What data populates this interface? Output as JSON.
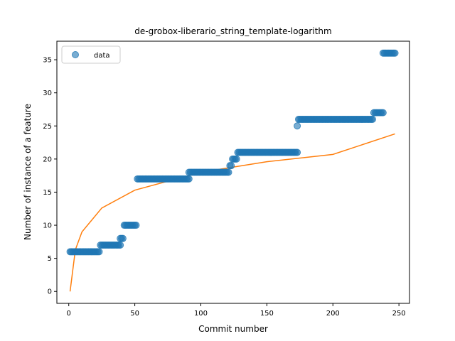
{
  "chart_data": {
    "type": "scatter",
    "title": "de-grobox-liberario_string_template-logarithm",
    "xlabel": "Commit number",
    "ylabel": "Number of instance of a feature",
    "xlim": [
      -9,
      258
    ],
    "ylim": [
      -1.8,
      37.8
    ],
    "xticks": [
      0,
      50,
      100,
      150,
      200,
      250
    ],
    "yticks": [
      0,
      5,
      10,
      15,
      20,
      25,
      30,
      35
    ],
    "legend": {
      "position": "top-left",
      "entries": [
        "data"
      ]
    },
    "grid": false,
    "colors": {
      "data": "#1f77b4",
      "fit": "#ff7f0e"
    },
    "series": [
      {
        "name": "data",
        "kind": "scatter",
        "segments": [
          {
            "x_start": 1,
            "x_end": 23,
            "y": 6
          },
          {
            "x_start": 24,
            "x_end": 39,
            "y": 7
          },
          {
            "x_start": 39,
            "x_end": 41,
            "y": 8
          },
          {
            "x_start": 42,
            "x_end": 51,
            "y": 10
          },
          {
            "x_start": 52,
            "x_end": 91,
            "y": 17
          },
          {
            "x_start": 91,
            "x_end": 121,
            "y": 18
          },
          {
            "x_start": 122,
            "x_end": 123,
            "y": 19
          },
          {
            "x_start": 124,
            "x_end": 127,
            "y": 20
          },
          {
            "x_start": 128,
            "x_end": 173,
            "y": 21
          },
          {
            "x_start": 173,
            "x_end": 173,
            "y": 25
          },
          {
            "x_start": 174,
            "x_end": 230,
            "y": 26
          },
          {
            "x_start": 231,
            "x_end": 238,
            "y": 27
          },
          {
            "x_start": 238,
            "x_end": 247,
            "y": 36
          }
        ]
      },
      {
        "kind": "line",
        "fit": "logarithmic",
        "points": [
          [
            1,
            0
          ],
          [
            5,
            6.3
          ],
          [
            10,
            9.0
          ],
          [
            25,
            12.6
          ],
          [
            50,
            15.3
          ],
          [
            100,
            18.0
          ],
          [
            150,
            19.6
          ],
          [
            200,
            20.7
          ],
          [
            247,
            23.8
          ]
        ]
      }
    ]
  }
}
